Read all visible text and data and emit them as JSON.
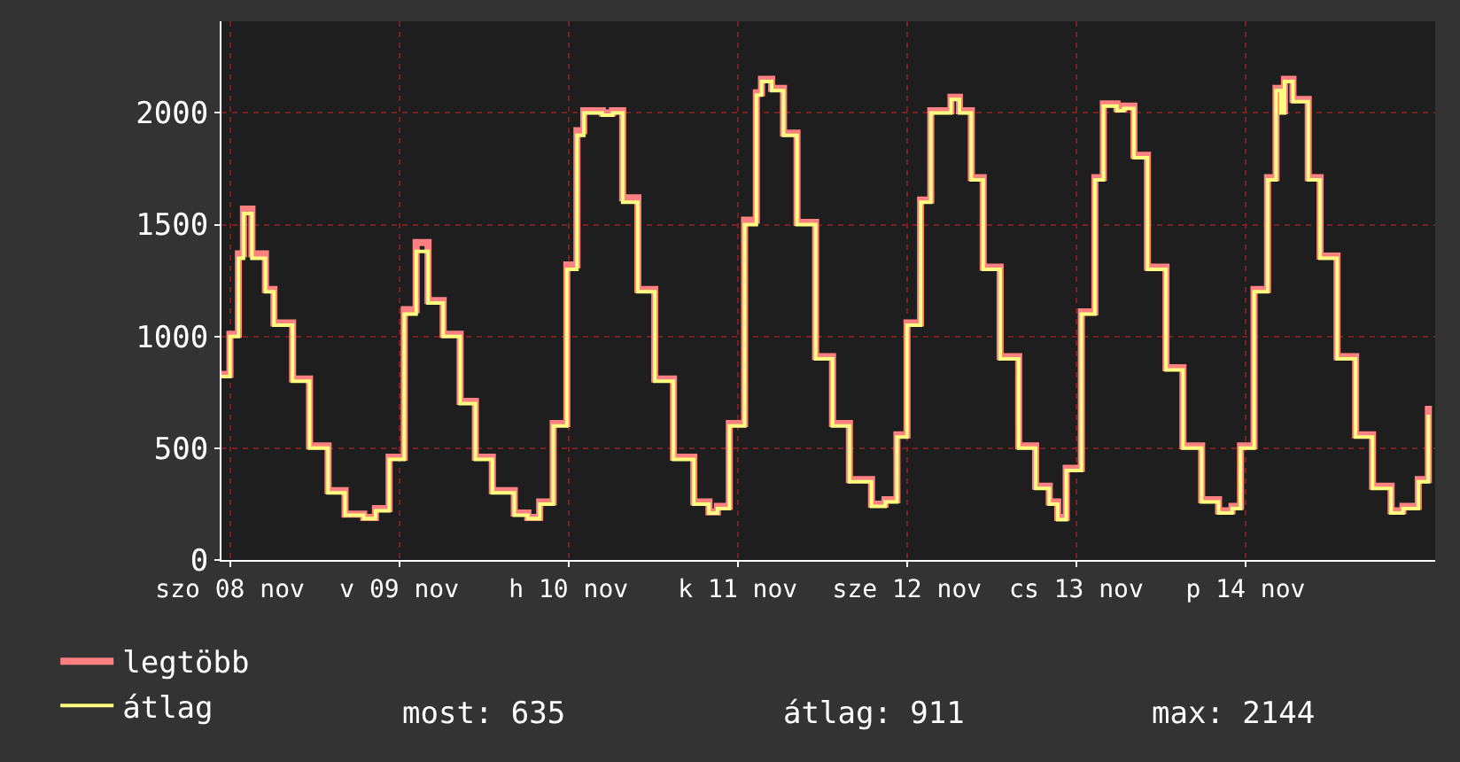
{
  "chart_data": {
    "type": "step",
    "x": [
      "--11-07T22:48",
      "--11-08T00:00",
      "--11-08T01:12",
      "--11-08T01:55",
      "--11-08T03:07",
      "--11-08T05:02",
      "--11-08T06:14",
      "--11-08T08:53",
      "--11-08T11:17",
      "--11-08T13:55",
      "--11-08T16:19",
      "--11-08T18:58",
      "--11-08T20:38",
      "--11-08T22:34",
      "--11-09T00:43",
      "--11-09T02:24",
      "--11-09T04:05",
      "--11-09T06:14",
      "--11-09T08:38",
      "--11-09T10:48",
      "--11-09T13:12",
      "--11-09T16:19",
      "--11-09T18:14",
      "--11-09T19:55",
      "--11-09T21:50",
      "--11-09T23:46",
      "--11-10T01:12",
      "--11-10T02:10",
      "--11-10T04:48",
      "--11-10T06:14",
      "--11-10T07:41",
      "--11-10T09:50",
      "--11-10T12:14",
      "--11-10T14:53",
      "--11-10T17:46",
      "--11-10T19:55",
      "--11-10T21:07",
      "--11-10T22:48",
      "--11-11T00:58",
      "--11-11T02:38",
      "--11-11T03:22",
      "--11-11T04:48",
      "--11-11T06:29",
      "--11-11T08:24",
      "--11-11T11:02",
      "--11-11T13:26",
      "--11-11T15:50",
      "--11-11T18:58",
      "--11-11T20:53",
      "--11-11T22:34",
      "--11-12T00:00",
      "--11-12T01:55",
      "--11-12T03:22",
      "--11-12T05:02",
      "--11-12T06:14",
      "--11-12T07:26",
      "--11-12T09:07",
      "--11-12T10:48",
      "--11-12T13:12",
      "--11-12T15:50",
      "--11-12T18:14",
      "--11-12T20:10",
      "--11-12T21:22",
      "--11-12T22:34",
      "--11-13T00:43",
      "--11-13T02:38",
      "--11-13T03:50",
      "--11-13T05:46",
      "--11-13T06:43",
      "--11-13T08:10",
      "--11-13T10:05",
      "--11-13T12:43",
      "--11-13T15:07",
      "--11-13T17:46",
      "--11-13T20:10",
      "--11-13T22:05",
      "--11-13T23:17",
      "--11-14T01:12",
      "--11-14T03:07",
      "--11-14T04:19",
      "--11-14T05:02",
      "--11-14T05:31",
      "--11-14T06:43",
      "--11-14T08:53",
      "--11-14T10:34",
      "--11-14T12:58",
      "--11-14T15:36",
      "--11-14T18:00",
      "--11-14T20:38",
      "--11-14T22:19",
      "--11-15T00:29",
      "--11-15T01:55"
    ],
    "series": [
      {
        "name": "legtöbb",
        "color": "#ff8080",
        "values": [
          830,
          1010,
          1370,
          1570,
          1370,
          1210,
          1060,
          810,
          510,
          310,
          205,
          190,
          230,
          460,
          1120,
          1420,
          1160,
          1010,
          710,
          460,
          310,
          210,
          190,
          260,
          610,
          1320,
          1920,
          2010,
          2000,
          2010,
          1620,
          1210,
          810,
          460,
          260,
          215,
          240,
          610,
          1520,
          2090,
          2150,
          2110,
          1910,
          1510,
          910,
          610,
          360,
          250,
          270,
          560,
          1060,
          1610,
          2010,
          2010,
          2070,
          2010,
          1710,
          1310,
          910,
          510,
          330,
          260,
          190,
          410,
          1110,
          1710,
          2040,
          2020,
          2030,
          1810,
          1310,
          860,
          510,
          270,
          220,
          240,
          510,
          1210,
          1710,
          2110,
          2010,
          2150,
          2060,
          1710,
          1360,
          910,
          560,
          330,
          220,
          240,
          360,
          690
        ]
      },
      {
        "name": "átlag",
        "color": "#ffff80",
        "values": [
          820,
          1000,
          1350,
          1550,
          1350,
          1200,
          1050,
          800,
          500,
          300,
          200,
          185,
          220,
          450,
          1100,
          1380,
          1150,
          1000,
          700,
          450,
          300,
          200,
          185,
          250,
          600,
          1300,
          1900,
          2000,
          1990,
          2000,
          1600,
          1200,
          800,
          450,
          250,
          210,
          230,
          600,
          1500,
          2080,
          2140,
          2100,
          1900,
          1500,
          900,
          600,
          350,
          240,
          260,
          550,
          1050,
          1600,
          2000,
          2000,
          2060,
          2000,
          1700,
          1300,
          900,
          500,
          320,
          250,
          180,
          400,
          1100,
          1700,
          2030,
          2010,
          2020,
          1800,
          1300,
          850,
          500,
          260,
          210,
          230,
          500,
          1200,
          1700,
          2100,
          2000,
          2140,
          2050,
          1700,
          1350,
          900,
          550,
          320,
          210,
          230,
          350,
          650
        ]
      }
    ],
    "xlim": [
      "--11-07T22:48",
      "--11-15T02:53"
    ],
    "xticks": [
      {
        "value": "--11-08",
        "label": "szo 08 nov"
      },
      {
        "value": "--11-09",
        "label": "v 09 nov"
      },
      {
        "value": "--11-10",
        "label": "h 10 nov"
      },
      {
        "value": "--11-11",
        "label": "k 11 nov"
      },
      {
        "value": "--11-12",
        "label": "sze 12 nov"
      },
      {
        "value": "--11-13",
        "label": "cs 13 nov"
      },
      {
        "value": "--11-14",
        "label": "p 14 nov"
      }
    ],
    "ylim": [
      0,
      2410
    ],
    "yticks": [
      0,
      500,
      1000,
      1500,
      2000
    ],
    "grid": true,
    "legend": "bottom left",
    "annotations": [
      "most: 635",
      "átlag: 911",
      "max: 2144"
    ]
  }
}
